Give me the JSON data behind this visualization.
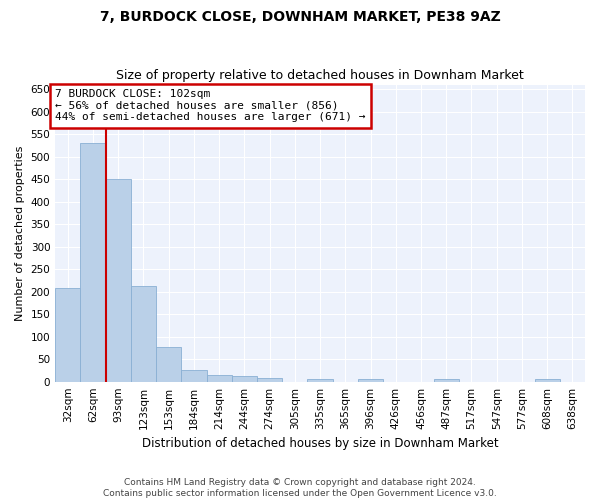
{
  "title": "7, BURDOCK CLOSE, DOWNHAM MARKET, PE38 9AZ",
  "subtitle": "Size of property relative to detached houses in Downham Market",
  "xlabel": "Distribution of detached houses by size in Downham Market",
  "ylabel": "Number of detached properties",
  "footer1": "Contains HM Land Registry data © Crown copyright and database right 2024.",
  "footer2": "Contains public sector information licensed under the Open Government Licence v3.0.",
  "bin_labels": [
    "32sqm",
    "62sqm",
    "93sqm",
    "123sqm",
    "153sqm",
    "184sqm",
    "214sqm",
    "244sqm",
    "274sqm",
    "305sqm",
    "335sqm",
    "365sqm",
    "396sqm",
    "426sqm",
    "456sqm",
    "487sqm",
    "517sqm",
    "547sqm",
    "577sqm",
    "608sqm",
    "638sqm"
  ],
  "bar_heights": [
    207,
    530,
    450,
    213,
    78,
    25,
    15,
    12,
    8,
    0,
    5,
    0,
    5,
    0,
    0,
    5,
    0,
    0,
    0,
    5,
    0
  ],
  "bar_color": "#bad0e8",
  "bar_edge_color": "#8aafd4",
  "red_line_x": 1.5,
  "ylim": [
    0,
    660
  ],
  "yticks": [
    0,
    50,
    100,
    150,
    200,
    250,
    300,
    350,
    400,
    450,
    500,
    550,
    600,
    650
  ],
  "annotation_text": "7 BURDOCK CLOSE: 102sqm\n← 56% of detached houses are smaller (856)\n44% of semi-detached houses are larger (671) →",
  "annotation_box_facecolor": "#ffffff",
  "annotation_box_edgecolor": "#cc0000",
  "vline_color": "#cc0000",
  "bg_color": "#edf2fc",
  "title_fontsize": 10,
  "subtitle_fontsize": 9,
  "tick_fontsize": 7.5,
  "ylabel_fontsize": 8,
  "xlabel_fontsize": 8.5,
  "annotation_fontsize": 8,
  "footer_fontsize": 6.5
}
